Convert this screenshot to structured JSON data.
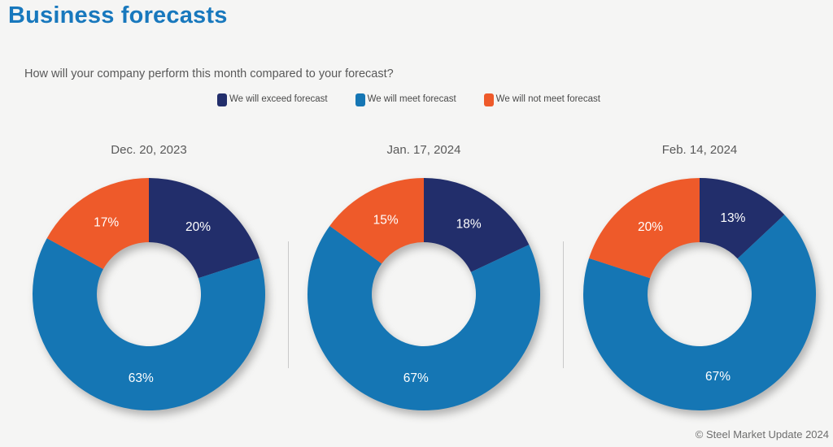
{
  "page": {
    "title": "Business forecasts",
    "question": "How will your company perform this month compared to your forecast?",
    "copyright": "© Steel Market Update 2024"
  },
  "colors": {
    "background": "#F5F5F4",
    "title_accent": "#1878BD",
    "heading_text": "#595959",
    "legend_text": "#4A4A4A",
    "divider": "#C9C9C9",
    "slice_label_text": "#FFFFFF",
    "series": [
      "#222E6B",
      "#1576B4",
      "#EE5A2A"
    ]
  },
  "legend": {
    "items": [
      {
        "label": "We will exceed forecast",
        "color": "#222E6B"
      },
      {
        "label": "We will meet forecast",
        "color": "#1576B4"
      },
      {
        "label": "We will not meet forecast",
        "color": "#EE5A2A"
      }
    ]
  },
  "chart_data": [
    {
      "type": "pie",
      "subtype": "donut",
      "title": "Dec. 20, 2023",
      "categories": [
        "We will exceed forecast",
        "We will meet forecast",
        "We will not meet forecast"
      ],
      "values": [
        20,
        63,
        17
      ],
      "labels": [
        "20%",
        "63%",
        "17%"
      ],
      "colors": [
        "#222E6B",
        "#1576B4",
        "#EE5A2A"
      ],
      "start_angle_deg": 0,
      "direction": "clockwise",
      "inner_radius_ratio": 0.45,
      "legend_position": "top"
    },
    {
      "type": "pie",
      "subtype": "donut",
      "title": "Jan. 17, 2024",
      "categories": [
        "We will exceed forecast",
        "We will meet forecast",
        "We will not meet forecast"
      ],
      "values": [
        18,
        67,
        15
      ],
      "labels": [
        "18%",
        "67%",
        "15%"
      ],
      "colors": [
        "#222E6B",
        "#1576B4",
        "#EE5A2A"
      ],
      "start_angle_deg": 0,
      "direction": "clockwise",
      "inner_radius_ratio": 0.45,
      "legend_position": "top"
    },
    {
      "type": "pie",
      "subtype": "donut",
      "title": "Feb. 14, 2024",
      "categories": [
        "We will exceed forecast",
        "We will meet forecast",
        "We will not meet forecast"
      ],
      "values": [
        13,
        67,
        20
      ],
      "labels": [
        "13%",
        "67%",
        "20%"
      ],
      "colors": [
        "#222E6B",
        "#1576B4",
        "#EE5A2A"
      ],
      "start_angle_deg": 0,
      "direction": "clockwise",
      "inner_radius_ratio": 0.45,
      "legend_position": "top"
    }
  ]
}
